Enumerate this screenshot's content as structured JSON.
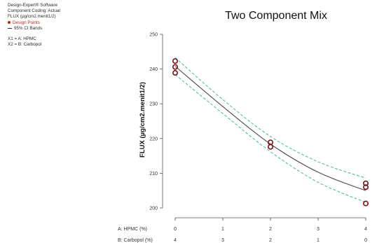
{
  "info": {
    "software": "Design-Expert® Software",
    "coding": "Component Coding: Actual",
    "response": "FLUX (µg/cm2.menit1/2)",
    "legend_points": "Design Points",
    "legend_bands": "95% CI Bands",
    "x1": "X1 = A: HPMC",
    "x2": "X2 = B: Carbopol"
  },
  "colors": {
    "fit": "#4a4a4a",
    "ci": "#3fb8a6",
    "points": "#7a1010"
  },
  "chart_data": {
    "type": "line",
    "title": "Two Component Mix",
    "ylabel": "FLUX (µg/cm2.menit1/2)",
    "ylim": [
      200,
      250
    ],
    "yticks": [
      200,
      210,
      220,
      230,
      240,
      250
    ],
    "xlim": [
      0,
      4
    ],
    "x_row_labels": [
      "A: HPMC (%)",
      "B: Carbopol (%)"
    ],
    "x_ticks_a": [
      "0",
      "1",
      "2",
      "3",
      "4"
    ],
    "x_ticks_b": [
      "4",
      "3",
      "2",
      "1",
      "0"
    ],
    "series": [
      {
        "role": "fit",
        "x": [
          0,
          1,
          2,
          3,
          4
        ],
        "y": [
          240.8,
          229.2,
          218.4,
          210.3,
          205.0
        ]
      },
      {
        "role": "ci_upper",
        "x": [
          0,
          1,
          2,
          3,
          4
        ],
        "y": [
          243.3,
          231.2,
          220.6,
          213.3,
          208.6
        ]
      },
      {
        "role": "ci_lower",
        "x": [
          0,
          1,
          2,
          3,
          4
        ],
        "y": [
          238.4,
          227.2,
          216.2,
          207.4,
          201.6
        ]
      }
    ],
    "points": [
      {
        "x": 0,
        "y": 242.3
      },
      {
        "x": 0,
        "y": 240.6
      },
      {
        "x": 0,
        "y": 238.9
      },
      {
        "x": 2,
        "y": 218.9
      },
      {
        "x": 2,
        "y": 217.6
      },
      {
        "x": 4,
        "y": 207.1
      },
      {
        "x": 4,
        "y": 206.0
      },
      {
        "x": 4,
        "y": 201.3
      }
    ]
  }
}
